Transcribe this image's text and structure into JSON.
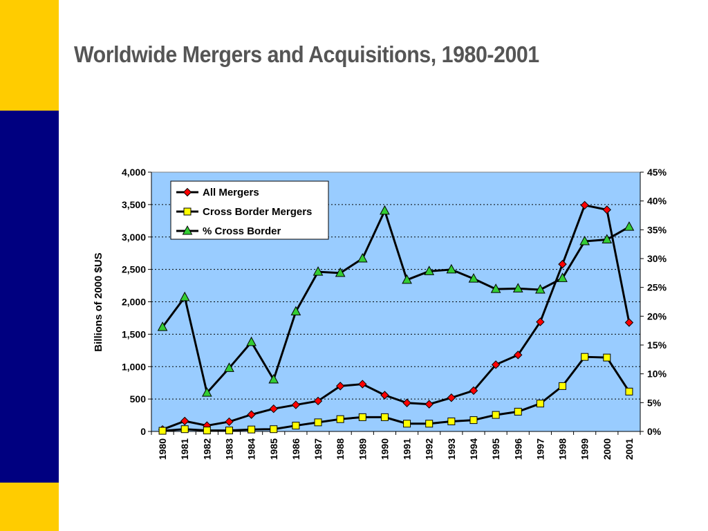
{
  "slide": {
    "title": "Worldwide Mergers and Acquisitions, 1980-2001"
  },
  "colors": {
    "band_yellow": "#FFCC00",
    "band_navy": "#000080",
    "plot_bg": "#99CCFF",
    "all_mergers_marker": "#FF0000",
    "cross_border_marker": "#FFFF00",
    "pct_cross_border_marker": "#33CC33"
  },
  "chart_data": {
    "type": "line",
    "title": "",
    "xlabel": "",
    "ylabel": "Billions of 2000 $US",
    "y2label": "",
    "categories": [
      "1980",
      "1981",
      "1982",
      "1983",
      "1984",
      "1985",
      "1986",
      "1987",
      "1988",
      "1989",
      "1990",
      "1991",
      "1992",
      "1993",
      "1994",
      "1995",
      "1996",
      "1997",
      "1998",
      "1999",
      "2000",
      "2001"
    ],
    "ylim": [
      0,
      4000
    ],
    "y_ticks": [
      "0",
      "500",
      "1,000",
      "1,500",
      "2,000",
      "2,500",
      "3,000",
      "3,500",
      "4,000"
    ],
    "y2lim": [
      0,
      45
    ],
    "y2_ticks": [
      "0%",
      "5%",
      "10%",
      "15%",
      "20%",
      "25%",
      "30%",
      "35%",
      "40%",
      "45%"
    ],
    "grid": "horizontal dotted",
    "legend_position": "top-left",
    "series": [
      {
        "name": "All Mergers",
        "axis": "left",
        "marker": "diamond",
        "values": [
          30,
          160,
          90,
          150,
          260,
          350,
          410,
          470,
          700,
          730,
          560,
          440,
          420,
          520,
          630,
          1030,
          1180,
          1690,
          2580,
          3490,
          3420,
          1680
        ]
      },
      {
        "name": "Cross Border Mergers",
        "axis": "left",
        "marker": "square",
        "values": [
          10,
          35,
          15,
          15,
          30,
          35,
          90,
          140,
          190,
          220,
          220,
          120,
          120,
          155,
          175,
          255,
          305,
          430,
          700,
          1150,
          1140,
          615
        ]
      },
      {
        "name": "% Cross Border",
        "axis": "right",
        "marker": "triangle",
        "values": [
          18.1,
          23.3,
          6.7,
          11.0,
          15.5,
          9.0,
          20.8,
          27.7,
          27.5,
          30.0,
          38.3,
          26.3,
          27.8,
          28.1,
          26.5,
          24.7,
          24.8,
          24.6,
          26.6,
          33.0,
          33.3,
          35.5
        ]
      }
    ]
  }
}
